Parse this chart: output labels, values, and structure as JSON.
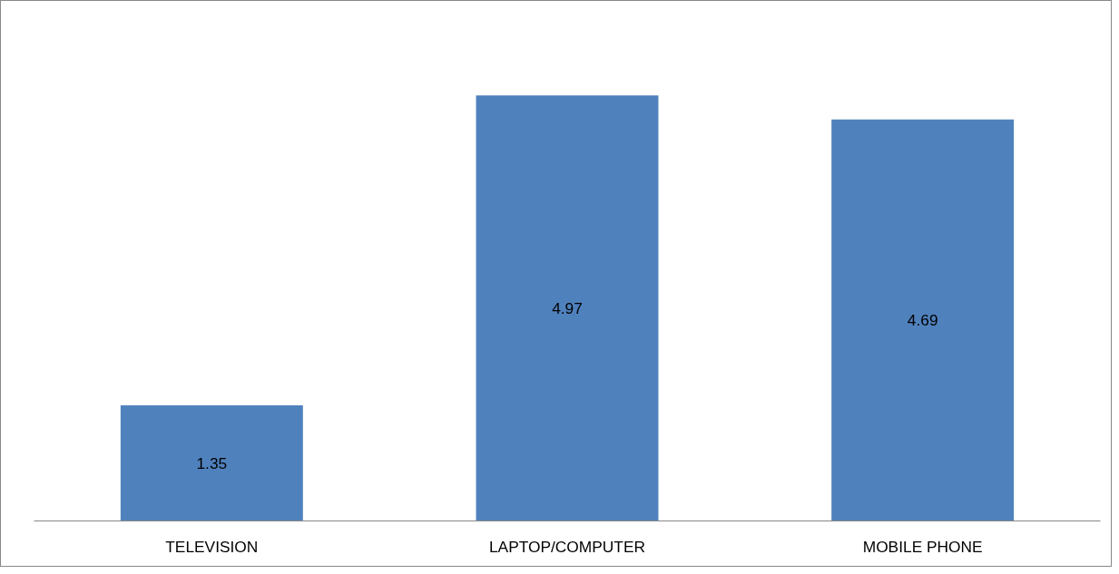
{
  "chart_data": {
    "type": "bar",
    "categories": [
      "TELEVISION",
      "LAPTOP/COMPUTER",
      "MOBILE PHONE"
    ],
    "values": [
      1.35,
      4.97,
      4.69
    ],
    "color": "#4f81bd",
    "data_labels": true,
    "grid": false
  }
}
